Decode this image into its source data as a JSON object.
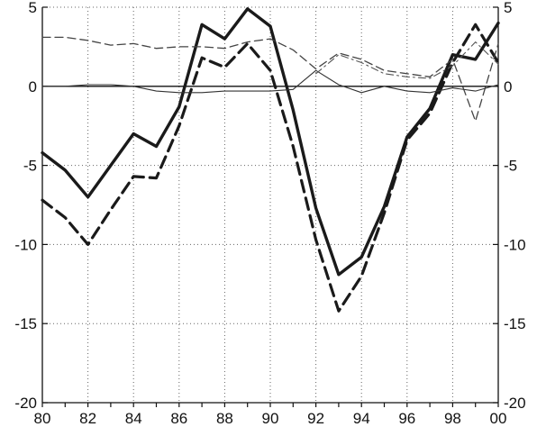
{
  "chart_data": {
    "type": "line",
    "title": "",
    "xlabel": "",
    "ylabel": "",
    "x": [
      1980,
      1981,
      1982,
      1983,
      1984,
      1985,
      1986,
      1987,
      1988,
      1989,
      1990,
      1991,
      1992,
      1993,
      1994,
      1995,
      1996,
      1997,
      1998,
      1999,
      2000
    ],
    "xticks": [
      1980,
      1982,
      1984,
      1986,
      1988,
      1990,
      1992,
      1994,
      1996,
      1998,
      2000
    ],
    "xtick_labels": [
      "80",
      "82",
      "84",
      "86",
      "88",
      "90",
      "92",
      "94",
      "96",
      "98",
      "00"
    ],
    "xlim": [
      1980,
      2000
    ],
    "ylim": [
      -20,
      5
    ],
    "yticks": [
      5,
      0,
      -5,
      -10,
      -15,
      -20
    ],
    "ytick_labels": [
      "5",
      "0",
      "-5",
      "-10",
      "-15",
      "-20"
    ],
    "right_axis": true,
    "grid": true,
    "legend": "none",
    "series": [
      {
        "style": "thick-solid",
        "color": "#1a1a1a",
        "values": [
          -4.2,
          -5.3,
          -7.0,
          -5.0,
          -3.0,
          -3.8,
          -1.3,
          3.9,
          3.0,
          4.9,
          3.8,
          -1.5,
          -7.7,
          -11.9,
          -10.8,
          -7.6,
          -3.2,
          -1.4,
          2.0,
          1.7,
          4.0
        ]
      },
      {
        "style": "thick-dashed",
        "color": "#1a1a1a",
        "values": [
          -7.2,
          -8.3,
          -10.0,
          -7.8,
          -5.7,
          -5.8,
          -2.5,
          1.8,
          1.2,
          2.7,
          1.0,
          -3.8,
          -9.7,
          -14.2,
          -12.0,
          -8.0,
          -3.4,
          -1.7,
          1.5,
          3.9,
          1.5
        ]
      },
      {
        "style": "thin-dashed",
        "color": "#444444",
        "values": [
          3.1,
          3.1,
          2.9,
          2.6,
          2.7,
          2.4,
          2.5,
          2.5,
          2.4,
          2.8,
          3.0,
          2.3,
          1.1,
          2.1,
          1.7,
          1.0,
          0.8,
          0.6,
          1.7,
          -2.2,
          2.7
        ]
      },
      {
        "style": "thin-solid",
        "color": "#333333",
        "values": [
          0.0,
          0.0,
          0.1,
          0.1,
          0.0,
          -0.3,
          -0.4,
          -0.4,
          -0.3,
          -0.3,
          -0.3,
          -0.2,
          1.0,
          0.1,
          -0.4,
          0.0,
          -0.3,
          -0.4,
          -0.1,
          -0.3,
          0.1
        ]
      },
      {
        "style": "thin-dashdot",
        "color": "#555555",
        "values": [
          null,
          null,
          null,
          null,
          null,
          null,
          null,
          null,
          null,
          null,
          null,
          null,
          0.8,
          2.0,
          1.5,
          0.8,
          0.6,
          0.5,
          1.3,
          2.8,
          1.4
        ]
      }
    ]
  }
}
